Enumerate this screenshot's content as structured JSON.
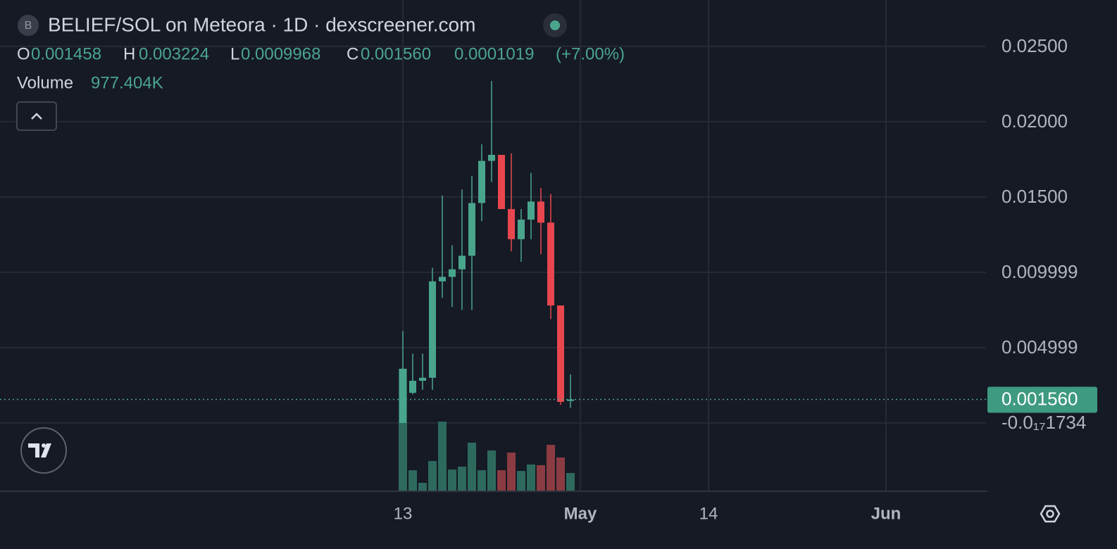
{
  "chart_data": {
    "type": "candlestick",
    "title": "BELIEF/SOL on Meteora · 1D · dexscreener.com",
    "icon_letter": "B",
    "ohlc_keys": [
      "O",
      "H",
      "L",
      "C"
    ],
    "last_close_label": "0.001560",
    "change": 0.0001019,
    "change_pct": "(+7.00%)",
    "volume_title": "Volume",
    "last_volume_label": "977.404K",
    "categories": [
      "13",
      null,
      null,
      null,
      null,
      null,
      null,
      null,
      null,
      null,
      null,
      null,
      null,
      null,
      null,
      null,
      null,
      null,
      "May",
      null,
      null,
      null,
      null,
      null,
      null,
      null,
      null,
      null,
      null,
      null,
      null,
      "14",
      null,
      null,
      null,
      null,
      null,
      null,
      null,
      null,
      null,
      null,
      null,
      null,
      null,
      null,
      null,
      null,
      null,
      "Jun"
    ],
    "open": [
      0.0,
      0.002,
      0.0028,
      0.003,
      0.0094,
      0.0097,
      0.0102,
      0.0111,
      0.0146,
      0.0174,
      0.0178,
      0.0142,
      0.0122,
      0.0135,
      0.0147,
      0.0133,
      0.0078,
      0.001458,
      null,
      null,
      null,
      null,
      null,
      null,
      null,
      null,
      null,
      null,
      null,
      null,
      null,
      null,
      null,
      null,
      null,
      null,
      null,
      null,
      null,
      null,
      null,
      null,
      null,
      null,
      null,
      null,
      null,
      null,
      null,
      null
    ],
    "high": [
      0.0061,
      0.0046,
      0.0046,
      0.0103,
      0.0151,
      0.0118,
      0.0155,
      0.0164,
      0.0185,
      0.0227,
      0.0178,
      0.0179,
      0.0142,
      0.0166,
      0.0156,
      0.0152,
      0.0078,
      0.003224,
      null,
      null,
      null,
      null,
      null,
      null,
      null,
      null,
      null,
      null,
      null,
      null,
      null,
      null,
      null,
      null,
      null,
      null,
      null,
      null,
      null,
      null,
      null,
      null,
      null,
      null,
      null,
      null,
      null,
      null,
      null,
      null
    ],
    "low": [
      0.0,
      0.0019,
      0.0022,
      0.0022,
      0.0083,
      0.0077,
      0.0075,
      0.0075,
      0.0134,
      0.016,
      0.0142,
      0.0114,
      0.0107,
      0.0122,
      0.0112,
      0.0069,
      0.0012,
      0.0009968,
      null,
      null,
      null,
      null,
      null,
      null,
      null,
      null,
      null,
      null,
      null,
      null,
      null,
      null,
      null,
      null,
      null,
      null,
      null,
      null,
      null,
      null,
      null,
      null,
      null,
      null,
      null,
      null,
      null,
      null,
      null,
      null
    ],
    "close": [
      0.0036,
      0.0028,
      0.003,
      0.0094,
      0.0097,
      0.0102,
      0.0111,
      0.0146,
      0.0174,
      0.0178,
      0.0142,
      0.0122,
      0.0135,
      0.0147,
      0.0133,
      0.0078,
      0.0014,
      0.00156,
      null,
      null,
      null,
      null,
      null,
      null,
      null,
      null,
      null,
      null,
      null,
      null,
      null,
      null,
      null,
      null,
      null,
      null,
      null,
      null,
      null,
      null,
      null,
      null,
      null,
      null,
      null,
      null,
      null,
      null,
      null,
      null
    ],
    "volume": [
      6760000,
      1130000,
      430000,
      1640000,
      3830000,
      1170000,
      1330000,
      2660000,
      1130000,
      2230000,
      1130000,
      2110000,
      1090000,
      1450000,
      1410000,
      2540000,
      1840000,
      977404,
      null,
      null,
      null,
      null,
      null,
      null,
      null,
      null,
      null,
      null,
      null,
      null,
      null,
      null,
      null,
      null,
      null,
      null,
      null,
      null,
      null,
      null,
      null,
      null,
      null,
      null,
      null,
      null,
      null,
      null,
      null,
      null
    ],
    "up_color": "#4aa58d",
    "down_color": "#e8474f",
    "volume_up_color": "#2d6a5d",
    "volume_down_color": "#8b3b42",
    "ylim": [
      -0.00449,
      0.02808
    ],
    "yticks": [
      {
        "value": -1.734e-18,
        "label": "-0.0₁₇1734"
      },
      0.004999,
      0.009999,
      {
        "value": 0.015,
        "label": "0.01500"
      },
      {
        "value": 0.02,
        "label": "0.02000"
      },
      {
        "value": 0.025,
        "label": "0.02500"
      }
    ],
    "volume_lim": [
      0,
      27250000
    ],
    "grid": true
  }
}
